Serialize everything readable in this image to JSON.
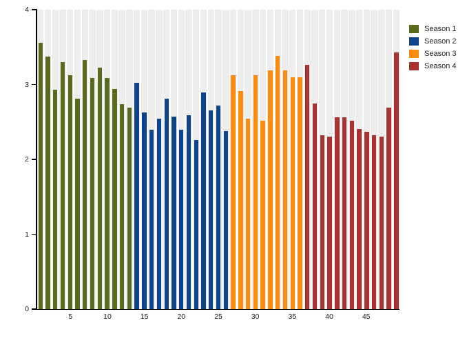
{
  "chart_data": {
    "type": "bar",
    "title": "",
    "xlabel": "",
    "ylabel": "",
    "x_start": 1,
    "ylim": [
      0,
      4
    ],
    "yticks": [
      0,
      1,
      2,
      3,
      4
    ],
    "xticks": [
      5,
      10,
      15,
      20,
      25,
      30,
      35,
      40,
      45
    ],
    "grid": "off",
    "legend_position": "top-right-outside",
    "colors": {
      "background": "#ffffff",
      "slot_stripe": "#ededed",
      "axis": "#000000",
      "tick_text": "#1c1c1c"
    },
    "series": [
      {
        "name": "Season 1",
        "color": "#5b6b1e",
        "values": [
          3.56,
          3.37,
          2.93,
          3.3,
          3.12,
          2.81,
          3.33,
          3.09,
          3.23,
          3.09,
          2.94,
          2.74,
          2.69
        ]
      },
      {
        "name": "Season 2",
        "color": "#0e4489",
        "values": [
          3.02,
          2.63,
          2.4,
          2.54,
          2.81,
          2.57,
          2.4,
          2.59,
          2.26,
          2.89,
          2.65,
          2.72,
          2.38
        ]
      },
      {
        "name": "Season 3",
        "color": "#fb8c0e",
        "values": [
          3.12,
          2.91,
          2.54,
          3.12,
          2.52,
          3.19,
          3.38,
          3.19,
          3.1,
          3.1
        ]
      },
      {
        "name": "Season 4",
        "color": "#a93233",
        "values": [
          3.26,
          2.75,
          2.32,
          2.3,
          2.56,
          2.56,
          2.52,
          2.41,
          2.37,
          2.32,
          2.3,
          2.69,
          3.43
        ]
      }
    ]
  }
}
